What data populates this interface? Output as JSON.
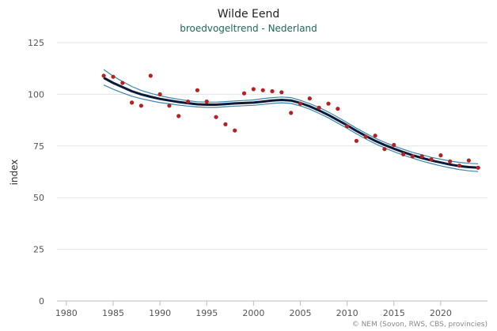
{
  "chart_data": {
    "type": "line",
    "title": "Wilde Eend",
    "subtitle": "broedvogeltrend - Nederland",
    "xlabel": "",
    "ylabel": "index",
    "xlim": [
      1979,
      2025
    ],
    "ylim": [
      0,
      125
    ],
    "x_ticks": [
      1980,
      1985,
      1990,
      1995,
      2000,
      2005,
      2010,
      2015,
      2020
    ],
    "y_ticks": [
      0,
      25,
      50,
      75,
      100,
      125
    ],
    "grid": "horizontal",
    "credit": "© NEM (Sovon, RWS, CBS, provincies)",
    "colors": {
      "trend": "#0c1a3a",
      "band": "#3a86ad",
      "points": "#b22222"
    },
    "series": [
      {
        "type": "line",
        "role": "trend",
        "x": [
          1984,
          1985,
          1986,
          1987,
          1988,
          1989,
          1990,
          1991,
          1992,
          1993,
          1994,
          1995,
          1996,
          1997,
          1998,
          1999,
          2000,
          2001,
          2002,
          2003,
          2004,
          2005,
          2006,
          2007,
          2008,
          2009,
          2010,
          2011,
          2012,
          2013,
          2014,
          2015,
          2016,
          2017,
          2018,
          2019,
          2020,
          2021,
          2022,
          2023,
          2024
        ],
        "values": [
          108.0,
          105.5,
          103.5,
          101.5,
          100.0,
          98.8,
          97.8,
          97.0,
          96.3,
          95.7,
          95.2,
          95.0,
          95.0,
          95.3,
          95.6,
          95.8,
          96.0,
          96.5,
          97.0,
          97.3,
          97.0,
          95.8,
          94.2,
          92.2,
          90.0,
          87.5,
          85.0,
          82.3,
          79.8,
          77.5,
          75.5,
          73.7,
          72.0,
          70.5,
          69.2,
          68.0,
          67.0,
          66.0,
          65.3,
          64.8,
          64.5
        ]
      },
      {
        "type": "line",
        "role": "upper-bound",
        "x": [
          1984,
          1985,
          1986,
          1987,
          1988,
          1989,
          1990,
          1991,
          1992,
          1993,
          1994,
          1995,
          1996,
          1997,
          1998,
          1999,
          2000,
          2001,
          2002,
          2003,
          2004,
          2005,
          2006,
          2007,
          2008,
          2009,
          2010,
          2011,
          2012,
          2013,
          2014,
          2015,
          2016,
          2017,
          2018,
          2019,
          2020,
          2021,
          2022,
          2023,
          2024
        ],
        "values": [
          112.0,
          108.8,
          106.2,
          103.8,
          101.9,
          100.5,
          99.3,
          98.4,
          97.6,
          96.9,
          96.4,
          96.2,
          96.2,
          96.5,
          96.8,
          97.0,
          97.3,
          97.9,
          98.4,
          98.7,
          98.4,
          97.1,
          95.5,
          93.6,
          91.4,
          88.9,
          86.3,
          83.6,
          81.1,
          78.8,
          76.8,
          75.0,
          73.4,
          71.9,
          70.7,
          69.5,
          68.6,
          67.7,
          67.1,
          66.6,
          66.4
        ]
      },
      {
        "type": "line",
        "role": "lower-bound",
        "x": [
          1984,
          1985,
          1986,
          1987,
          1988,
          1989,
          1990,
          1991,
          1992,
          1993,
          1994,
          1995,
          1996,
          1997,
          1998,
          1999,
          2000,
          2001,
          2002,
          2003,
          2004,
          2005,
          2006,
          2007,
          2008,
          2009,
          2010,
          2011,
          2012,
          2013,
          2014,
          2015,
          2016,
          2017,
          2018,
          2019,
          2020,
          2021,
          2022,
          2023,
          2024
        ],
        "values": [
          104.5,
          102.5,
          100.7,
          99.1,
          97.9,
          96.9,
          96.0,
          95.4,
          94.8,
          94.3,
          93.9,
          93.7,
          93.7,
          94.0,
          94.3,
          94.5,
          94.7,
          95.1,
          95.6,
          95.9,
          95.6,
          94.4,
          92.8,
          90.8,
          88.6,
          86.1,
          83.6,
          80.9,
          78.4,
          76.1,
          74.1,
          72.3,
          70.6,
          69.1,
          67.7,
          66.5,
          65.4,
          64.4,
          63.6,
          63.0,
          62.6
        ]
      },
      {
        "type": "scatter",
        "role": "observed-index",
        "x": [
          1984,
          1985,
          1986,
          1987,
          1988,
          1989,
          1990,
          1991,
          1992,
          1993,
          1994,
          1995,
          1996,
          1997,
          1998,
          1999,
          2000,
          2001,
          2002,
          2003,
          2004,
          2005,
          2006,
          2007,
          2008,
          2009,
          2010,
          2011,
          2012,
          2013,
          2014,
          2015,
          2016,
          2017,
          2018,
          2019,
          2020,
          2021,
          2022,
          2023,
          2024
        ],
        "values": [
          109,
          108.5,
          105.5,
          96,
          94.5,
          109,
          100,
          94.5,
          89.5,
          96.5,
          102,
          96.5,
          89,
          85.5,
          82.5,
          100.5,
          102.5,
          102,
          101.5,
          101,
          91,
          95.5,
          98,
          93.5,
          95.5,
          93,
          84.5,
          77.5,
          79.5,
          80,
          73.5,
          75.5,
          71,
          70,
          70,
          68.5,
          70.5,
          67.5,
          65.5,
          68,
          64.5
        ]
      }
    ]
  }
}
